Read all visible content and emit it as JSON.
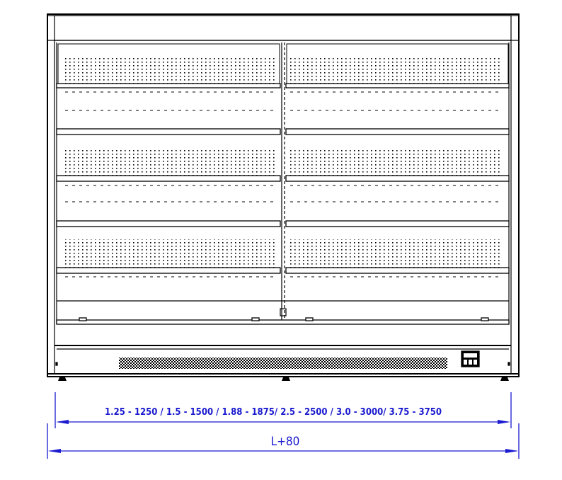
{
  "drawing": {
    "subject": "open multideck display case front view",
    "colors": {
      "line": "#000000",
      "dimension": "#1a1ad0"
    },
    "dimensions": {
      "inner_length_label": "1.25 - 1250 / 1.5 - 1500 / 1.88 - 1875/ 2.5 - 2500 / 3.0 - 3000/ 3.75 - 3750",
      "overall_length_label": "L+80"
    }
  }
}
